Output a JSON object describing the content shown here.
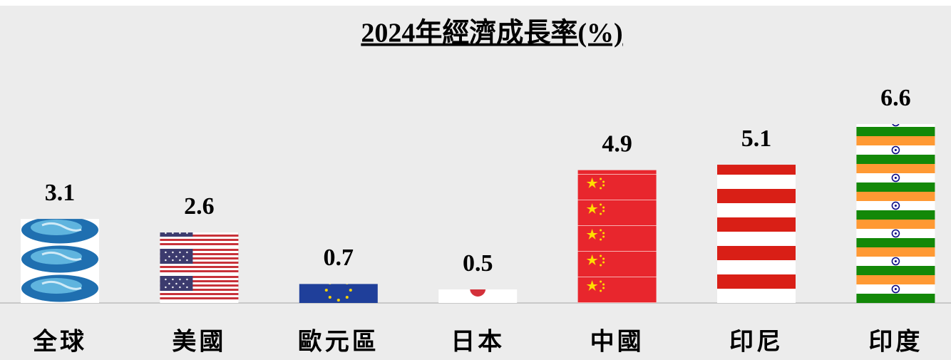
{
  "chart_data": {
    "type": "bar",
    "title": "2024年經濟成長率(%)",
    "categories": [
      "全球",
      "美國",
      "歐元區",
      "日本",
      "中國",
      "印尼",
      "印度"
    ],
    "values": [
      3.1,
      2.6,
      0.7,
      0.5,
      4.9,
      5.1,
      6.6
    ]
  }
}
